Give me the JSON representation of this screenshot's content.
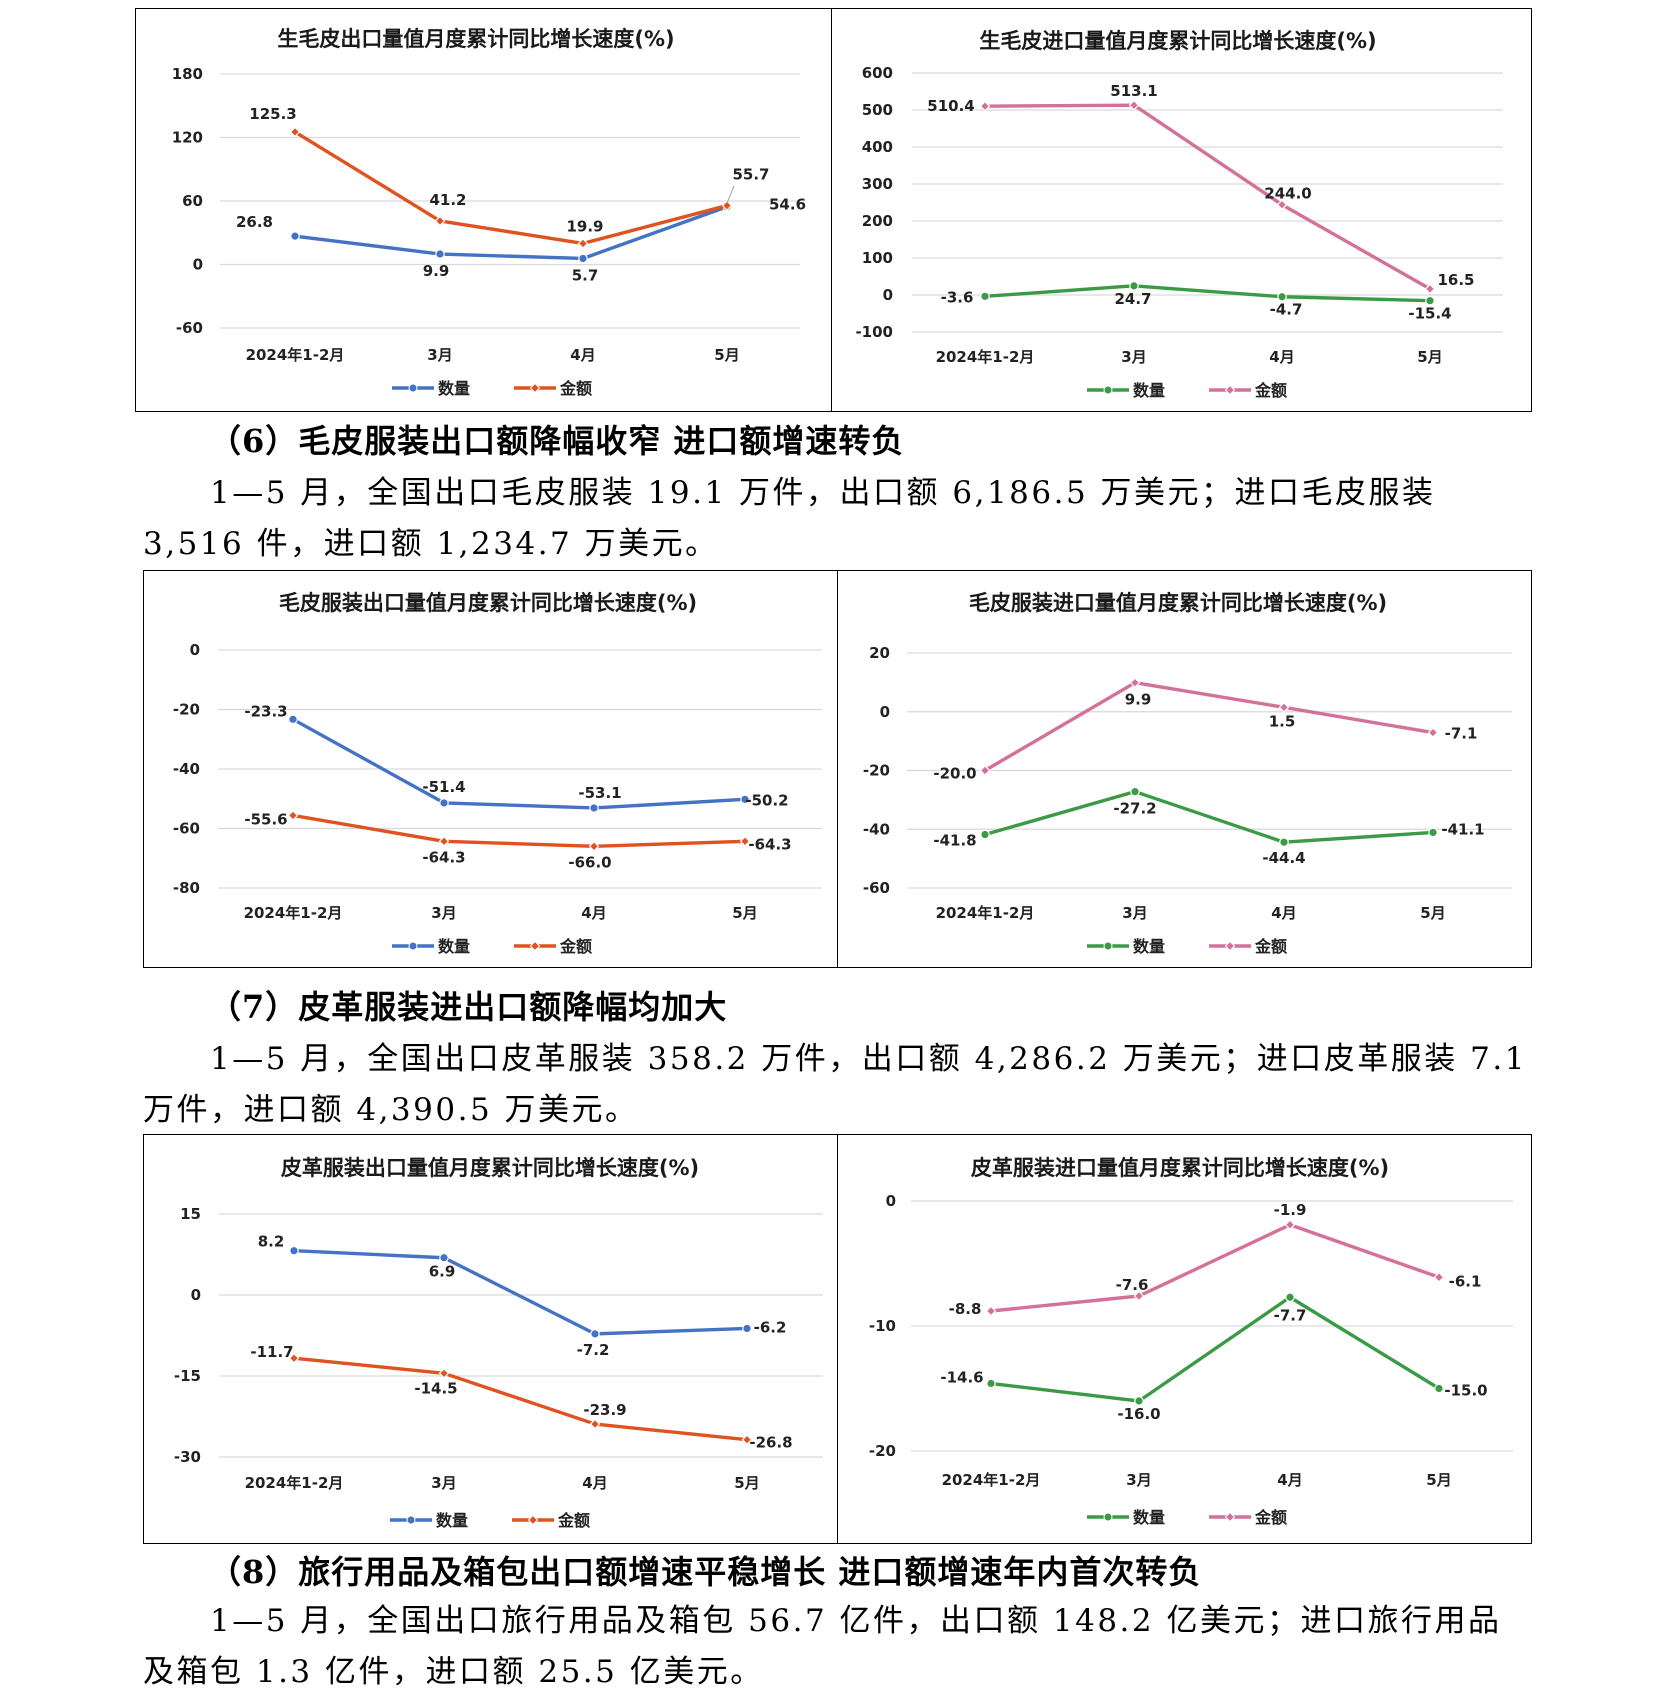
{
  "colors": {
    "blue": "#4472c4",
    "orange": "#e0521f",
    "green": "#3b9a46",
    "pink": "#d4719a"
  },
  "sections": [
    {
      "heading": "（6）毛皮服装出口额降幅收窄  进口额增速转负",
      "paragraph": "1—5 月，全国出口毛皮服装 19.1 万件，出口额 6,186.5 万美元；进口毛皮服装 3,516 件，进口额 1,234.7 万美元。"
    },
    {
      "heading": "（7）皮革服装进出口额降幅均加大",
      "paragraph": "1—5 月，全国出口皮革服装 358.2 万件，出口额 4,286.2 万美元；进口皮革服装 7.1 万件，进口额 4,390.5 万美元。"
    },
    {
      "heading": "（8）旅行用品及箱包出口额增速平稳增长    进口额增速年内首次转负",
      "paragraph": "1—5 月，全国出口旅行用品及箱包 56.7 亿件，出口额 148.2 亿美元；进口旅行用品及箱包 1.3 亿件，进口额 25.5 亿美元。"
    }
  ],
  "chart_data": [
    {
      "type": "line",
      "title": "生毛皮出口量值月度累计同比增长速度(%)",
      "categories": [
        "2024年1-2月",
        "3月",
        "4月",
        "5月"
      ],
      "ylim": [
        -60,
        180
      ],
      "yticks": [
        -60,
        0,
        60,
        120,
        180
      ],
      "series": [
        {
          "name": "数量",
          "color": "blue",
          "values": [
            26.8,
            9.9,
            5.7,
            54.6
          ]
        },
        {
          "name": "金额",
          "color": "orange",
          "values": [
            125.3,
            41.2,
            19.9,
            55.7
          ]
        }
      ]
    },
    {
      "type": "line",
      "title": "生毛皮进口量值月度累计同比增长速度(%)",
      "categories": [
        "2024年1-2月",
        "3月",
        "4月",
        "5月"
      ],
      "ylim": [
        -100,
        600
      ],
      "yticks": [
        -100,
        0,
        100,
        200,
        300,
        400,
        500,
        600
      ],
      "series": [
        {
          "name": "数量",
          "color": "green",
          "values": [
            -3.6,
            24.7,
            -4.7,
            -15.4
          ]
        },
        {
          "name": "金额",
          "color": "pink",
          "values": [
            510.4,
            513.1,
            244.0,
            16.5
          ]
        }
      ]
    },
    {
      "type": "line",
      "title": "毛皮服装出口量值月度累计同比增长速度(%)",
      "categories": [
        "2024年1-2月",
        "3月",
        "4月",
        "5月"
      ],
      "ylim": [
        -80,
        0
      ],
      "yticks": [
        -80,
        -60,
        -40,
        -20,
        0
      ],
      "series": [
        {
          "name": "数量",
          "color": "blue",
          "values": [
            -23.3,
            -51.4,
            -53.1,
            -50.2
          ]
        },
        {
          "name": "金额",
          "color": "orange",
          "values": [
            -55.6,
            -64.3,
            -66.0,
            -64.3
          ]
        }
      ]
    },
    {
      "type": "line",
      "title": "毛皮服装进口量值月度累计同比增长速度(%)",
      "categories": [
        "2024年1-2月",
        "3月",
        "4月",
        "5月"
      ],
      "ylim": [
        -60,
        20
      ],
      "yticks": [
        -60,
        -40,
        -20,
        0,
        20
      ],
      "series": [
        {
          "name": "数量",
          "color": "green",
          "values": [
            -41.8,
            -27.2,
            -44.4,
            -41.1
          ]
        },
        {
          "name": "金额",
          "color": "pink",
          "values": [
            -20.0,
            9.9,
            1.5,
            -7.1
          ]
        }
      ]
    },
    {
      "type": "line",
      "title": "皮革服装出口量值月度累计同比增长速度(%)",
      "categories": [
        "2024年1-2月",
        "3月",
        "4月",
        "5月"
      ],
      "ylim": [
        -30,
        15
      ],
      "yticks": [
        -30,
        -15,
        0,
        15
      ],
      "series": [
        {
          "name": "数量",
          "color": "blue",
          "values": [
            8.2,
            6.9,
            -7.2,
            -6.2
          ]
        },
        {
          "name": "金额",
          "color": "orange",
          "values": [
            -11.7,
            -14.5,
            -23.9,
            -26.8
          ]
        }
      ]
    },
    {
      "type": "line",
      "title": "皮革服装进口量值月度累计同比增长速度(%)",
      "categories": [
        "2024年1-2月",
        "3月",
        "4月",
        "5月"
      ],
      "ylim": [
        -20,
        0
      ],
      "yticks": [
        -20,
        -10,
        0
      ],
      "series": [
        {
          "name": "数量",
          "color": "green",
          "values": [
            -14.6,
            -16.0,
            -7.7,
            -15.0
          ]
        },
        {
          "name": "金额",
          "color": "pink",
          "values": [
            -8.8,
            -7.6,
            -1.9,
            -6.1
          ]
        }
      ]
    }
  ]
}
